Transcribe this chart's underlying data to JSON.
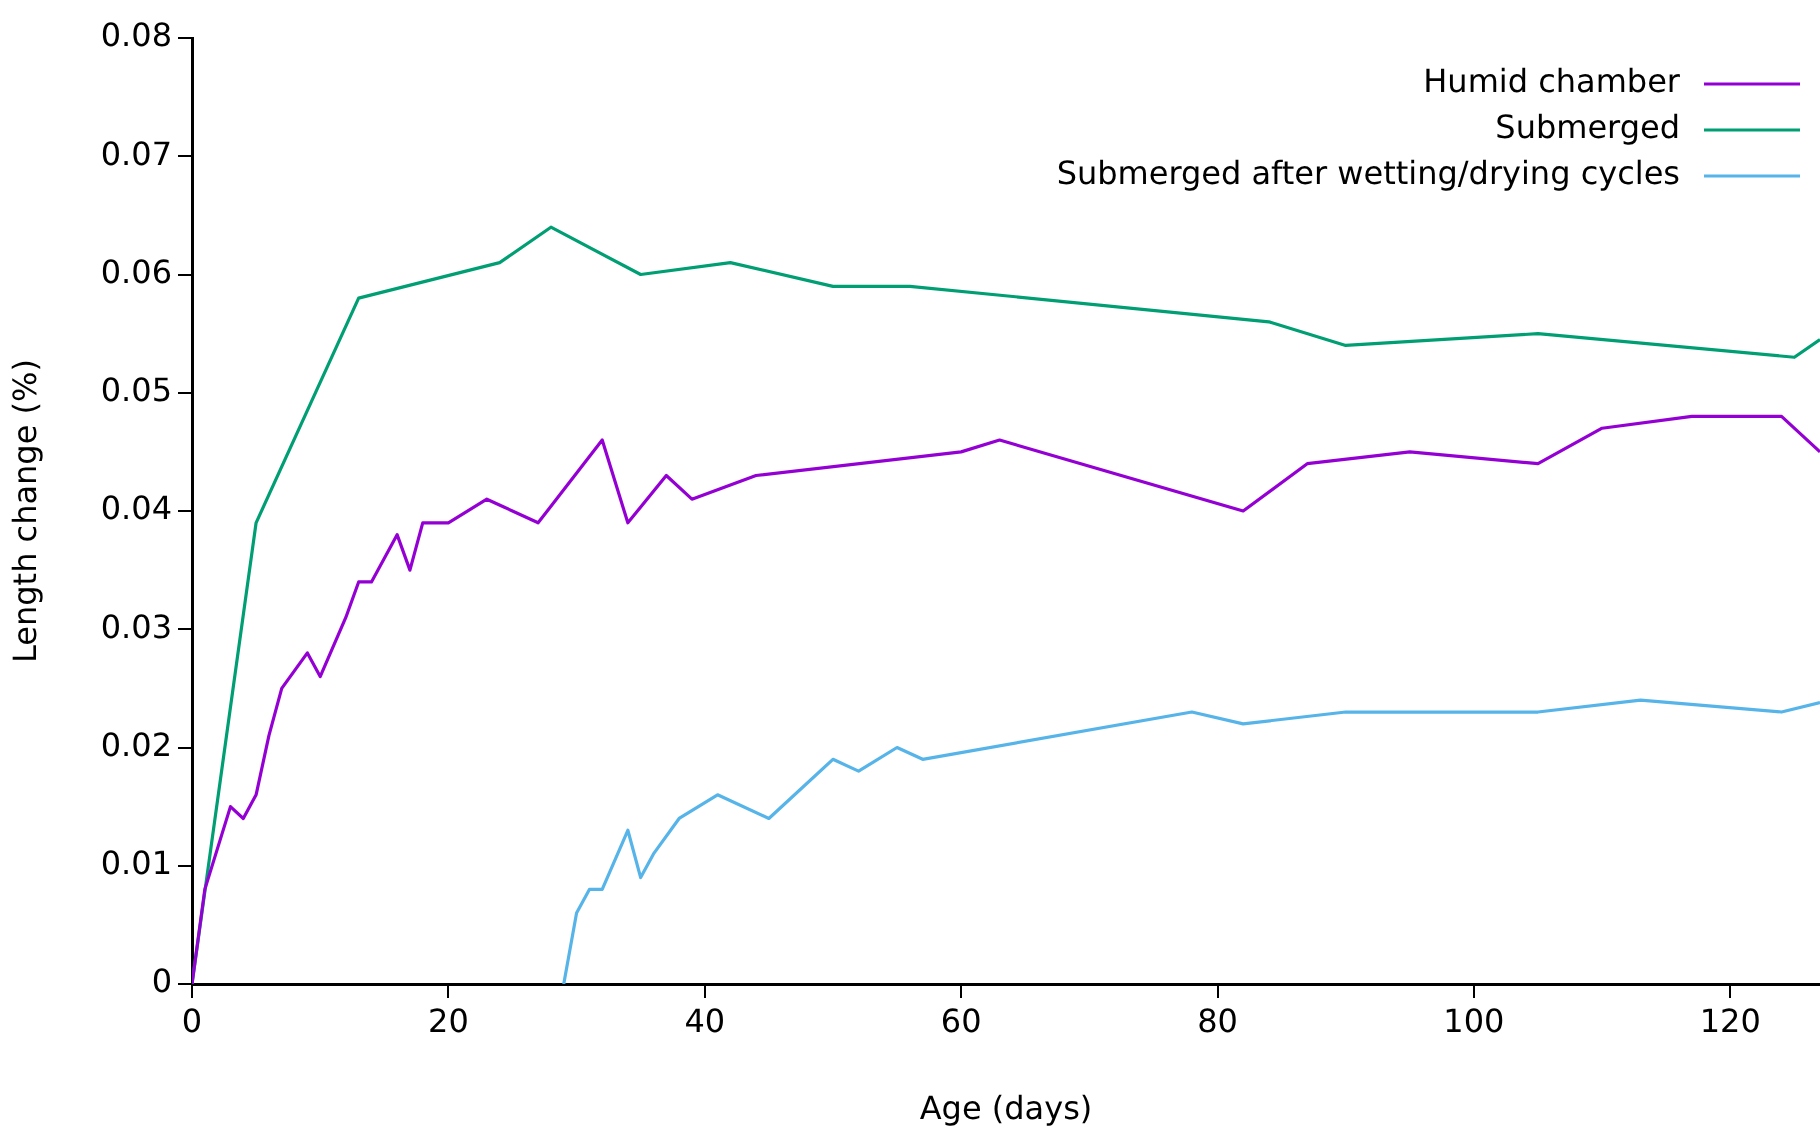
{
  "chart_data": {
    "type": "line",
    "xlabel": "Age (days)",
    "ylabel": "Length change (%)",
    "xlim": [
      0,
      127
    ],
    "xticks": [
      0,
      20,
      40,
      60,
      80,
      100,
      120
    ],
    "ylim": [
      0,
      0.08
    ],
    "yticks": [
      0,
      0.01,
      0.02,
      0.03,
      0.04,
      0.05,
      0.06,
      0.07,
      0.08
    ],
    "grid": false,
    "legend": "top right",
    "marker": "none",
    "line_style": "solid",
    "series": [
      {
        "name": "Humid chamber",
        "color": "#9400d3",
        "x": [
          0,
          1,
          3,
          4,
          5,
          6,
          7,
          9,
          10,
          12,
          13,
          14,
          16,
          17,
          18,
          20,
          23,
          27,
          32,
          34,
          37,
          39,
          44,
          60,
          63,
          82,
          87,
          95,
          105,
          110,
          117,
          124,
          127
        ],
        "values": [
          0,
          0.008,
          0.015,
          0.014,
          0.016,
          0.021,
          0.025,
          0.028,
          0.026,
          0.031,
          0.034,
          0.034,
          0.038,
          0.035,
          0.039,
          0.039,
          0.041,
          0.039,
          0.046,
          0.039,
          0.043,
          0.041,
          0.043,
          0.045,
          0.046,
          0.04,
          0.044,
          0.045,
          0.044,
          0.047,
          0.048,
          0.048,
          0.045
        ]
      },
      {
        "name": "Submerged",
        "color": "#009e73",
        "x": [
          0,
          5,
          13,
          24,
          28,
          35,
          42,
          50,
          56,
          84,
          90,
          105,
          125,
          127
        ],
        "values": [
          0,
          0.039,
          0.058,
          0.061,
          0.064,
          0.06,
          0.061,
          0.059,
          0.059,
          0.056,
          0.054,
          0.055,
          0.053,
          0.0545
        ]
      },
      {
        "name": "Submerged after wetting/drying cycles",
        "color": "#56b4e9",
        "x": [
          29,
          30,
          31,
          32,
          34,
          35,
          36,
          38,
          41,
          45,
          50,
          52,
          55,
          57,
          78,
          82,
          90,
          105,
          113,
          124,
          127
        ],
        "values": [
          0,
          0.006,
          0.008,
          0.008,
          0.013,
          0.009,
          0.011,
          0.014,
          0.016,
          0.014,
          0.019,
          0.018,
          0.02,
          0.019,
          0.023,
          0.022,
          0.023,
          0.023,
          0.024,
          0.023,
          0.0238
        ]
      }
    ]
  }
}
